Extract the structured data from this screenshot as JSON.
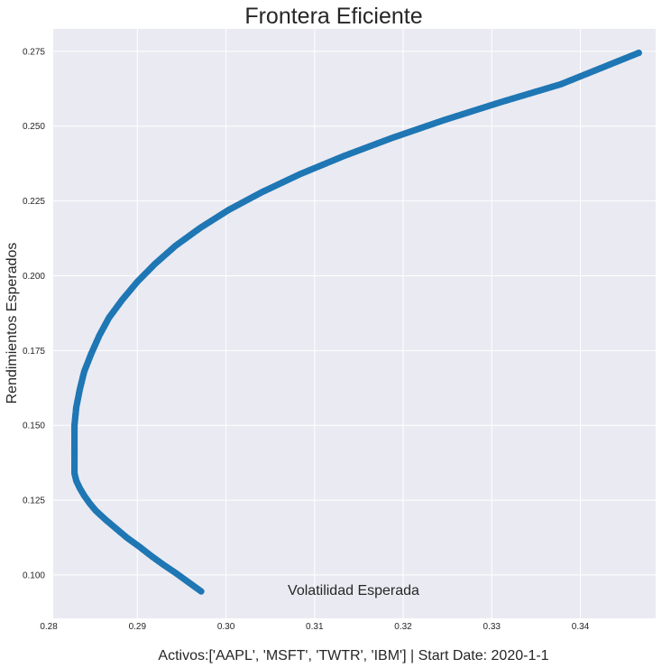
{
  "chart_data": {
    "type": "scatter",
    "title": "Frontera Eficiente",
    "xlabel": "Volatilidad Esperada",
    "ylabel": "Rendimientos Esperados",
    "caption": "Activos:['AAPL', 'MSFT', 'TWTR', 'IBM'] | Start Date: 2020-1-1",
    "xlim": [
      0.2805,
      0.3485
    ],
    "ylim": [
      0.0855,
      0.2825
    ],
    "xticks": [
      0.28,
      0.29,
      0.3,
      0.31,
      0.32,
      0.33,
      0.34
    ],
    "xtick_labels": [
      "0.28",
      "0.29",
      "0.30",
      "0.31",
      "0.32",
      "0.33",
      "0.34"
    ],
    "yticks": [
      0.1,
      0.125,
      0.15,
      0.175,
      0.2,
      0.225,
      0.25,
      0.275
    ],
    "ytick_labels": [
      "0.100",
      "0.125",
      "0.150",
      "0.175",
      "0.200",
      "0.225",
      "0.250",
      "0.275"
    ],
    "grid": true,
    "marker_color": "#1f77b4",
    "background_color": "#eaeaf2",
    "series": [
      {
        "x": [
          0.2972,
          0.2958,
          0.2944,
          0.2929,
          0.2915,
          0.2902,
          0.2888,
          0.2876,
          0.2864,
          0.2853,
          0.2846,
          0.284,
          0.2835,
          0.2831,
          0.2829,
          0.2829,
          0.2831,
          0.2835,
          0.284,
          0.2848,
          0.2857,
          0.2868,
          0.2883,
          0.29,
          0.292,
          0.2943,
          0.2971,
          0.3003,
          0.3041,
          0.3084,
          0.3133,
          0.3187,
          0.3246,
          0.331,
          0.3378,
          0.3466
        ],
        "y": [
          0.0945,
          0.0975,
          0.1005,
          0.1035,
          0.1065,
          0.1095,
          0.1125,
          0.1155,
          0.1185,
          0.1215,
          0.124,
          0.1265,
          0.129,
          0.1315,
          0.134,
          0.15,
          0.156,
          0.162,
          0.168,
          0.174,
          0.18,
          0.186,
          0.192,
          0.198,
          0.204,
          0.21,
          0.216,
          0.222,
          0.228,
          0.234,
          0.24,
          0.246,
          0.252,
          0.258,
          0.264,
          0.2745
        ]
      }
    ]
  }
}
